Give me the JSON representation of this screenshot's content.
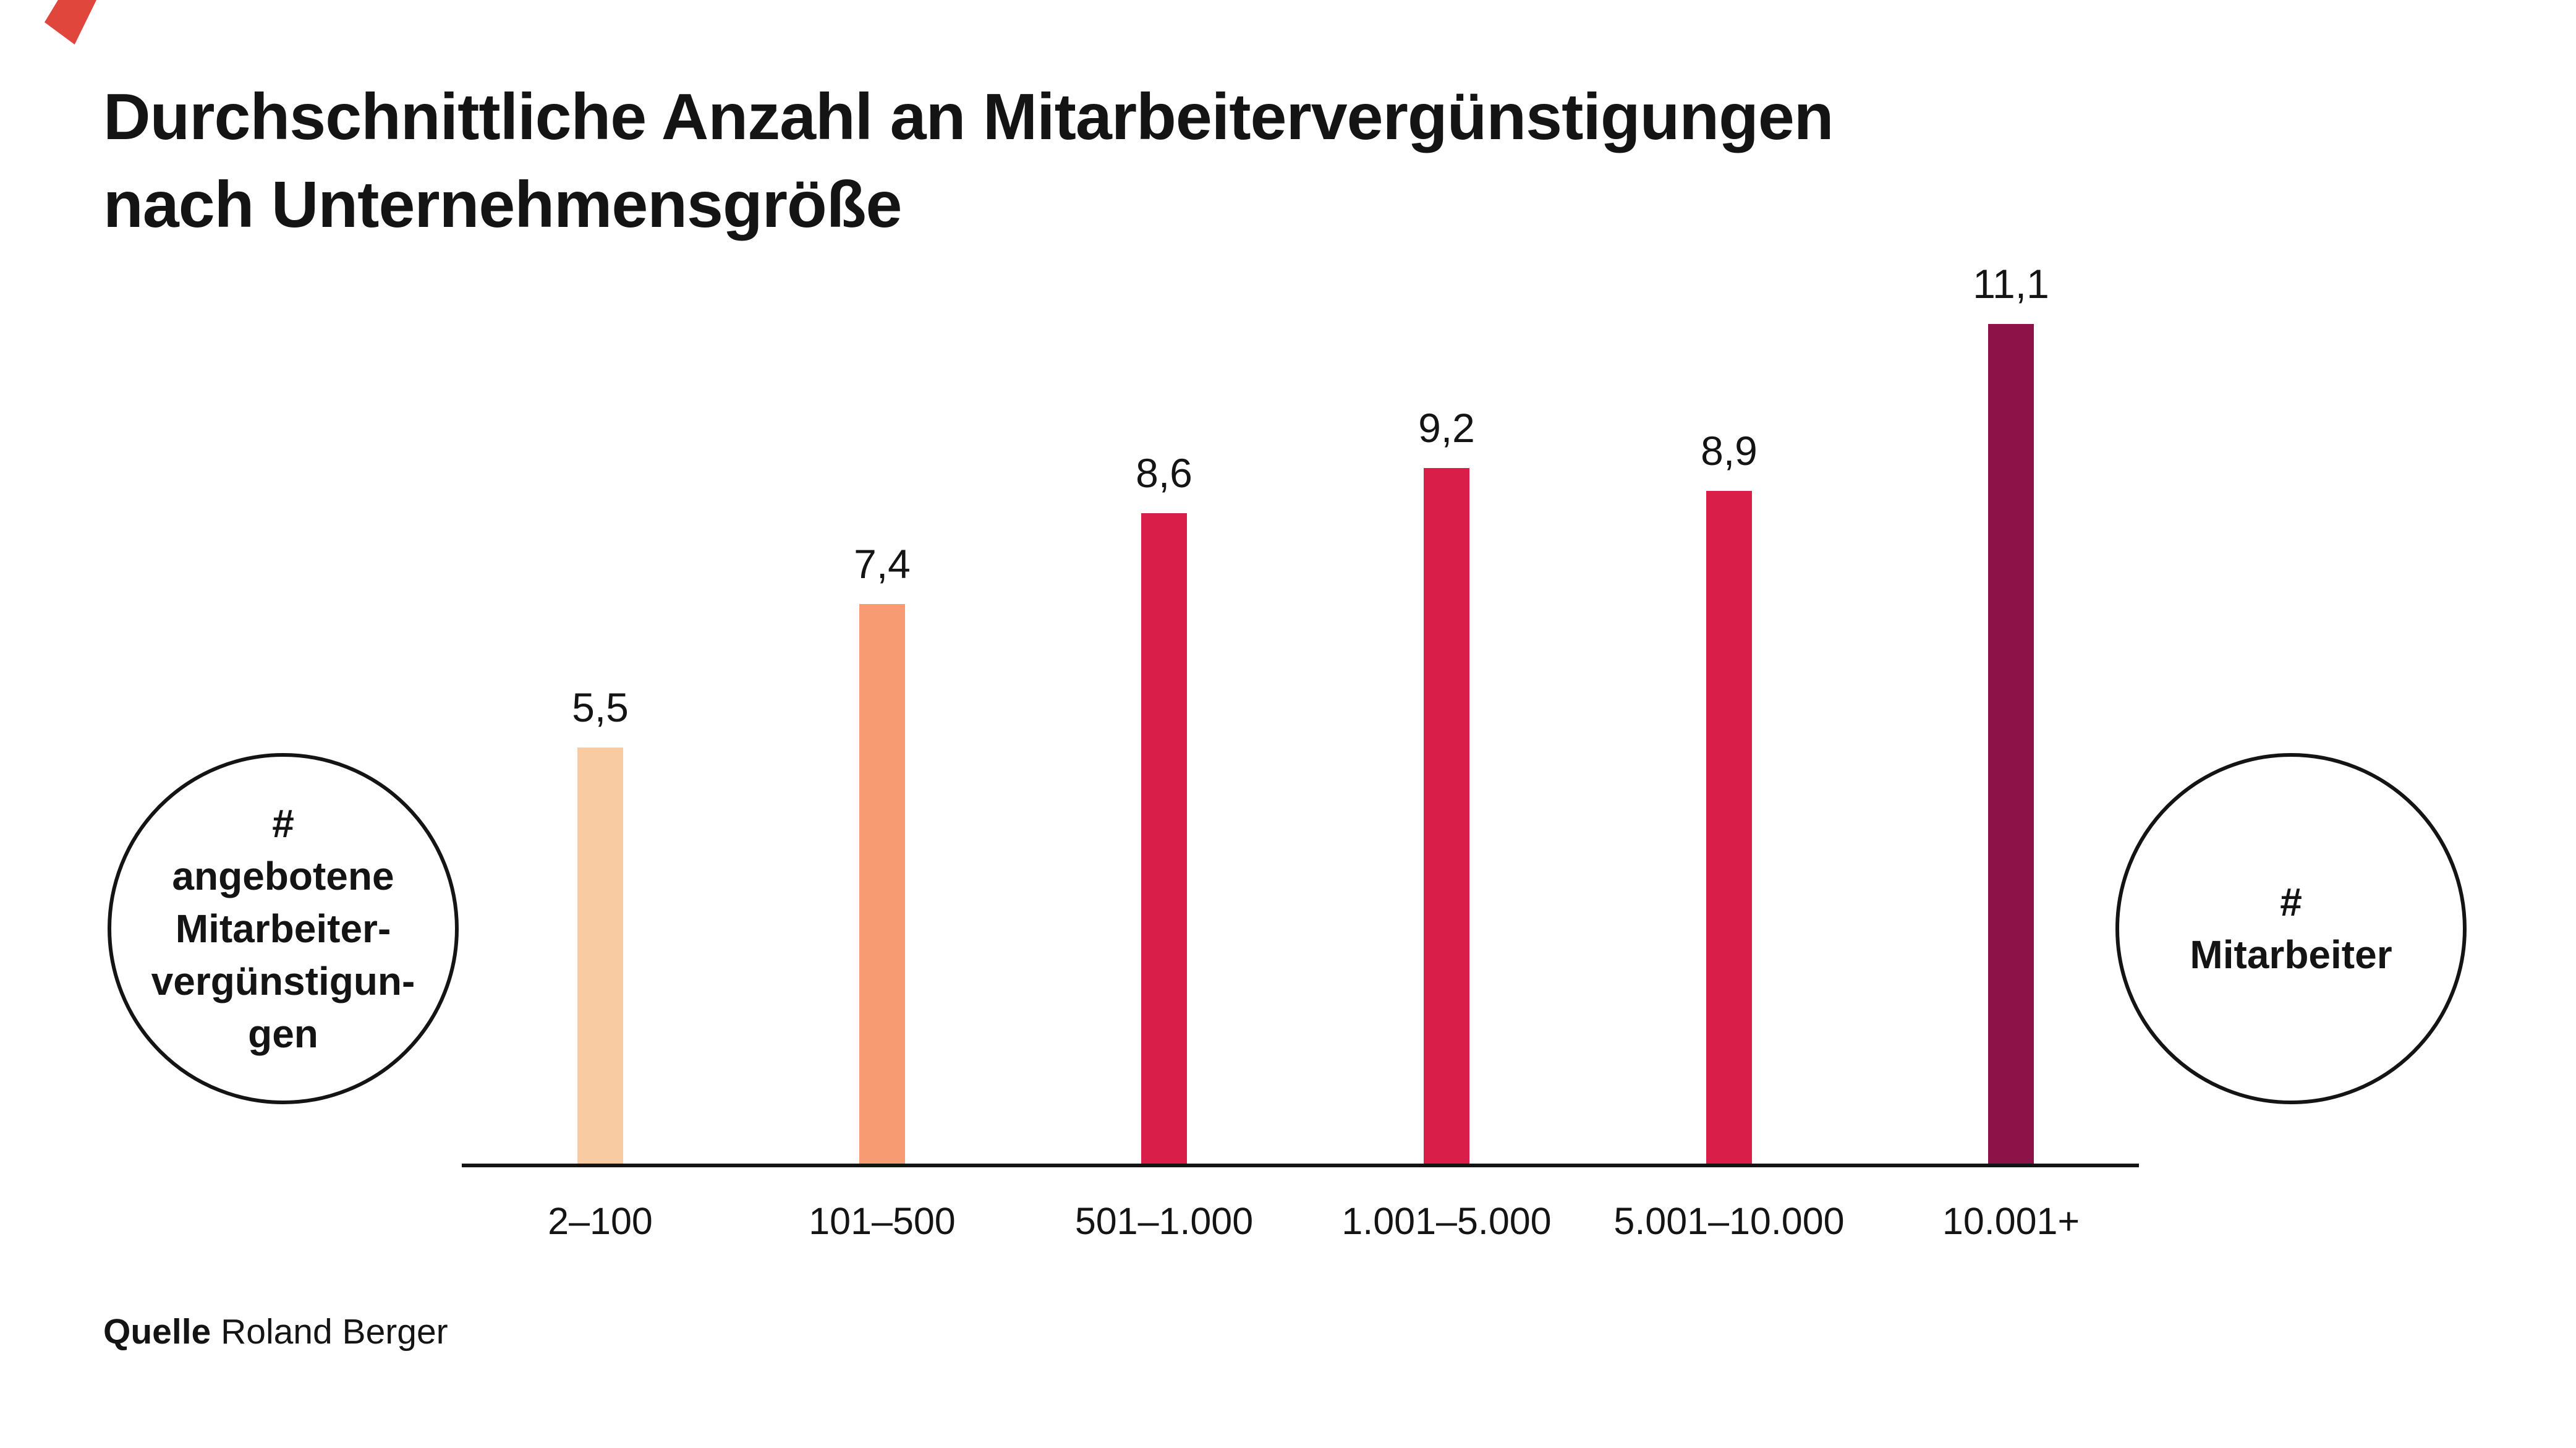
{
  "accent_color": "#E0463C",
  "title": {
    "line1": "Durchschnittliche Anzahl an Mitarbeitervergünstigungen",
    "line2": "nach Unternehmensgröße"
  },
  "chart_data": {
    "type": "bar",
    "title": "Durchschnittliche Anzahl an Mitarbeitervergünstigungen nach Unternehmensgröße",
    "categories": [
      "2–100",
      "101–500",
      "501–1.000",
      "1.001–5.000",
      "5.001–10.000",
      "10.001+"
    ],
    "values": [
      5.5,
      7.4,
      8.6,
      9.2,
      8.9,
      11.1
    ],
    "value_labels": [
      "5,5",
      "7,4",
      "8,6",
      "9,2",
      "8,9",
      "11,1"
    ],
    "bar_colors": [
      "#F9CBA3",
      "#F79B72",
      "#D91E49",
      "#D91E49",
      "#D91E49",
      "#8C1247"
    ],
    "xlabel": "Unternehmensgröße (# Mitarbeiter)",
    "ylabel": "# angebotene Mitarbeitervergünstigungen",
    "ylim": [
      0,
      12
    ],
    "grid": false,
    "legend": false,
    "axis_color": "#141414"
  },
  "left_circle": {
    "symbol": "#",
    "lines": [
      "angebotene",
      "Mitarbeiter-",
      "vergünstigun-",
      "gen"
    ]
  },
  "right_circle": {
    "symbol": "#",
    "label": "Mitarbeiter"
  },
  "source": {
    "label": "Quelle",
    "value": "Roland Berger"
  }
}
